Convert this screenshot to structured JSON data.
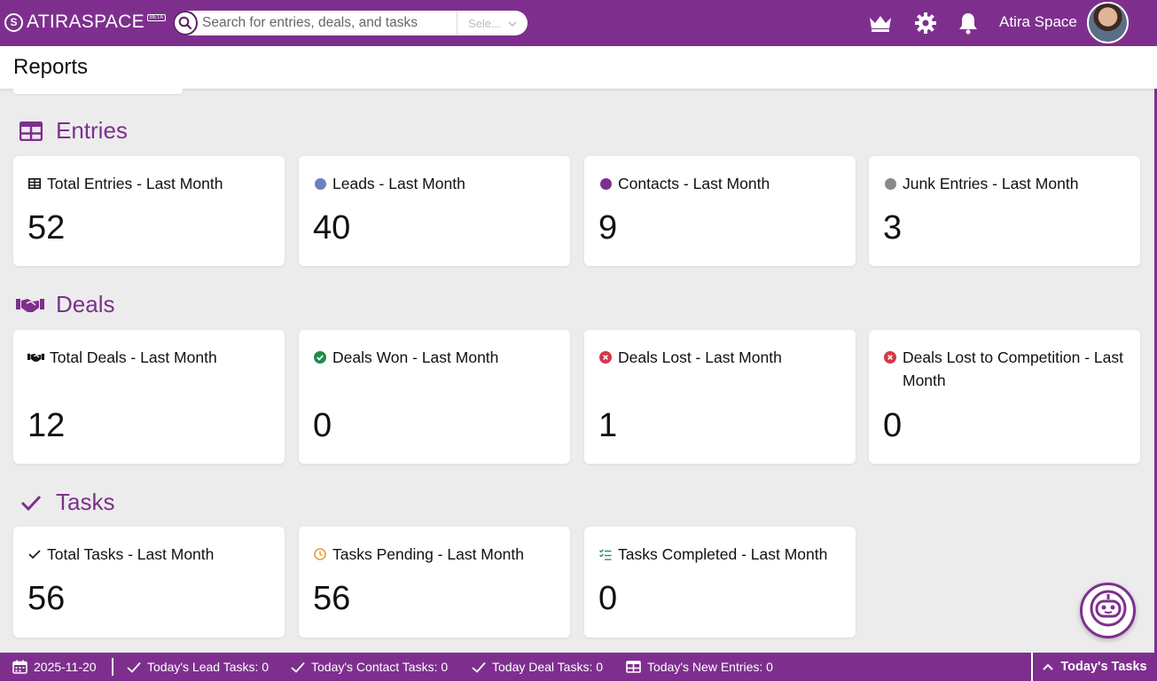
{
  "header": {
    "brand": "ATIRASPACE",
    "brand_badge": "BETA",
    "search_placeholder": "Search for entries, deals, and tasks",
    "search_select": "Sele...",
    "user_name": "Atira Space"
  },
  "page": {
    "title": "Reports"
  },
  "sections": {
    "entries": {
      "title": "Entries",
      "cards": [
        {
          "title": "Total Entries - Last Month",
          "value": "52",
          "icon": "table-icon"
        },
        {
          "title": "Leads - Last Month",
          "value": "40",
          "icon": "dot",
          "color": "#6f7fbf"
        },
        {
          "title": "Contacts - Last Month",
          "value": "9",
          "icon": "dot",
          "color": "#7e2f8e"
        },
        {
          "title": "Junk Entries - Last Month",
          "value": "3",
          "icon": "dot",
          "color": "#8a8a8a"
        }
      ]
    },
    "deals": {
      "title": "Deals",
      "cards": [
        {
          "title": "Total Deals - Last Month",
          "value": "12",
          "icon": "handshake-icon"
        },
        {
          "title": "Deals Won - Last Month",
          "value": "0",
          "icon": "check-circle-icon",
          "color": "#1f8a4c"
        },
        {
          "title": "Deals Lost - Last Month",
          "value": "1",
          "icon": "x-circle-icon",
          "color": "#d9374a"
        },
        {
          "title": "Deals Lost to Competition - Last Month",
          "value": "0",
          "icon": "x-circle-icon",
          "color": "#d9374a"
        }
      ]
    },
    "tasks": {
      "title": "Tasks",
      "cards": [
        {
          "title": "Total Tasks - Last Month",
          "value": "56",
          "icon": "check-icon"
        },
        {
          "title": "Tasks Pending - Last Month",
          "value": "56",
          "icon": "clock-icon",
          "color": "#e39a2b"
        },
        {
          "title": "Tasks Completed - Last Month",
          "value": "0",
          "icon": "list-check-icon",
          "color": "#1f8a4c"
        }
      ]
    }
  },
  "footer": {
    "date": "2025-11-20",
    "lead_tasks": "Today's Lead Tasks: 0",
    "contact_tasks": "Today's Contact Tasks: 0",
    "deal_tasks": "Today Deal Tasks: 0",
    "new_entries": "Today's New Entries: 0",
    "today_tasks": "Today's Tasks"
  },
  "colors": {
    "brand": "#7e2f8e",
    "background": "#ececec",
    "card": "#ffffff"
  }
}
